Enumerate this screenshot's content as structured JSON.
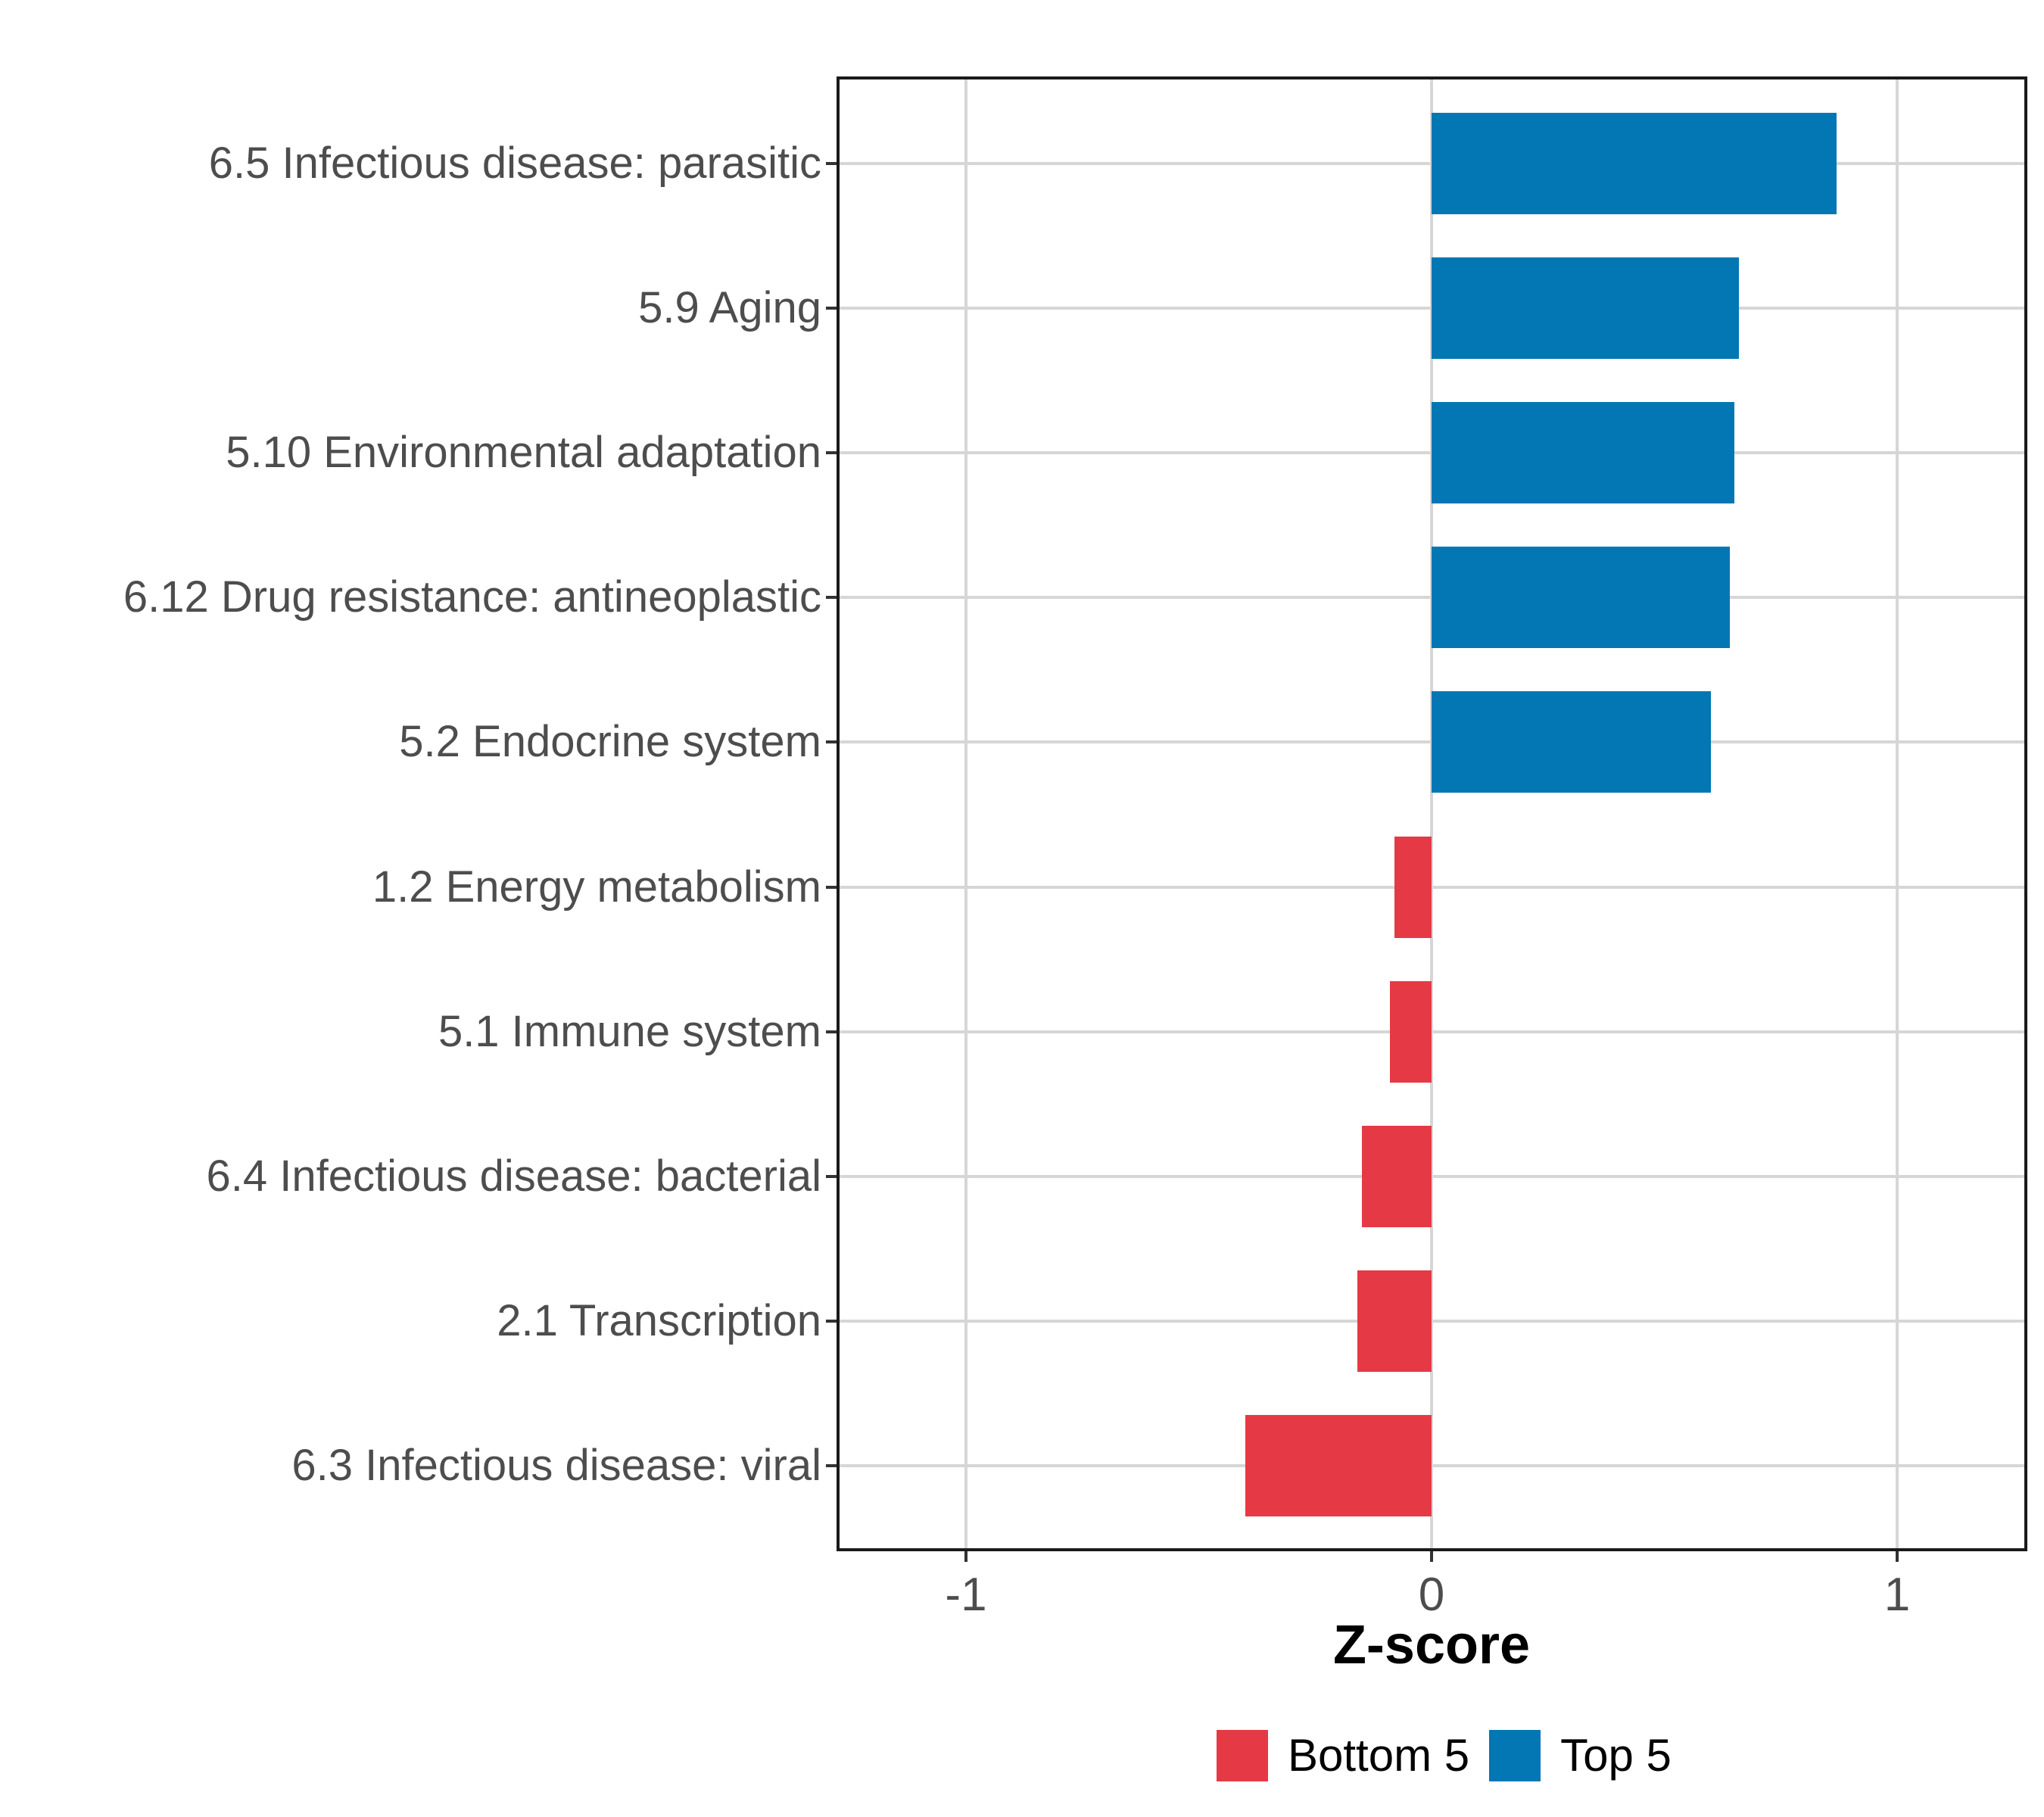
{
  "chart_data": {
    "type": "bar",
    "orientation": "horizontal",
    "xlabel": "Z-score",
    "categories": [
      "6.5 Infectious disease: parasitic",
      "5.9 Aging",
      "5.10 Environmental adaptation",
      "6.12 Drug resistance: antineoplastic",
      "5.2 Endocrine system",
      "1.2 Energy metabolism",
      "5.1 Immune system",
      "6.4 Infectious disease: bacterial",
      "2.1 Transcription",
      "6.3 Infectious disease: viral"
    ],
    "values": [
      0.87,
      0.66,
      0.65,
      0.64,
      0.6,
      -0.08,
      -0.09,
      -0.15,
      -0.16,
      -0.4
    ],
    "groups": [
      "Top 5",
      "Top 5",
      "Top 5",
      "Top 5",
      "Top 5",
      "Bottom 5",
      "Bottom 5",
      "Bottom 5",
      "Bottom 5",
      "Bottom 5"
    ],
    "x_ticks": [
      {
        "value": -1,
        "label": "-1"
      },
      {
        "value": 0,
        "label": "0"
      },
      {
        "value": 1,
        "label": "1"
      }
    ],
    "xlim": [
      -1.28,
      1.28
    ],
    "grid": "major vertical gridlines at x ticks, horizontal gridline per category",
    "legend": {
      "position": "bottom",
      "entries": [
        {
          "label": "Bottom 5",
          "color": "#E63946"
        },
        {
          "label": "Top 5",
          "color": "#0277B4"
        }
      ]
    }
  },
  "colors": {
    "top5_bar": "#0277B4",
    "bottom5_bar": "#E63946",
    "gridline": "#D6D6D6",
    "axis_text": "#4D4D4D",
    "panel_border": "#1A1A1A",
    "tick_mark": "#333333",
    "background": "#FFFFFF"
  }
}
